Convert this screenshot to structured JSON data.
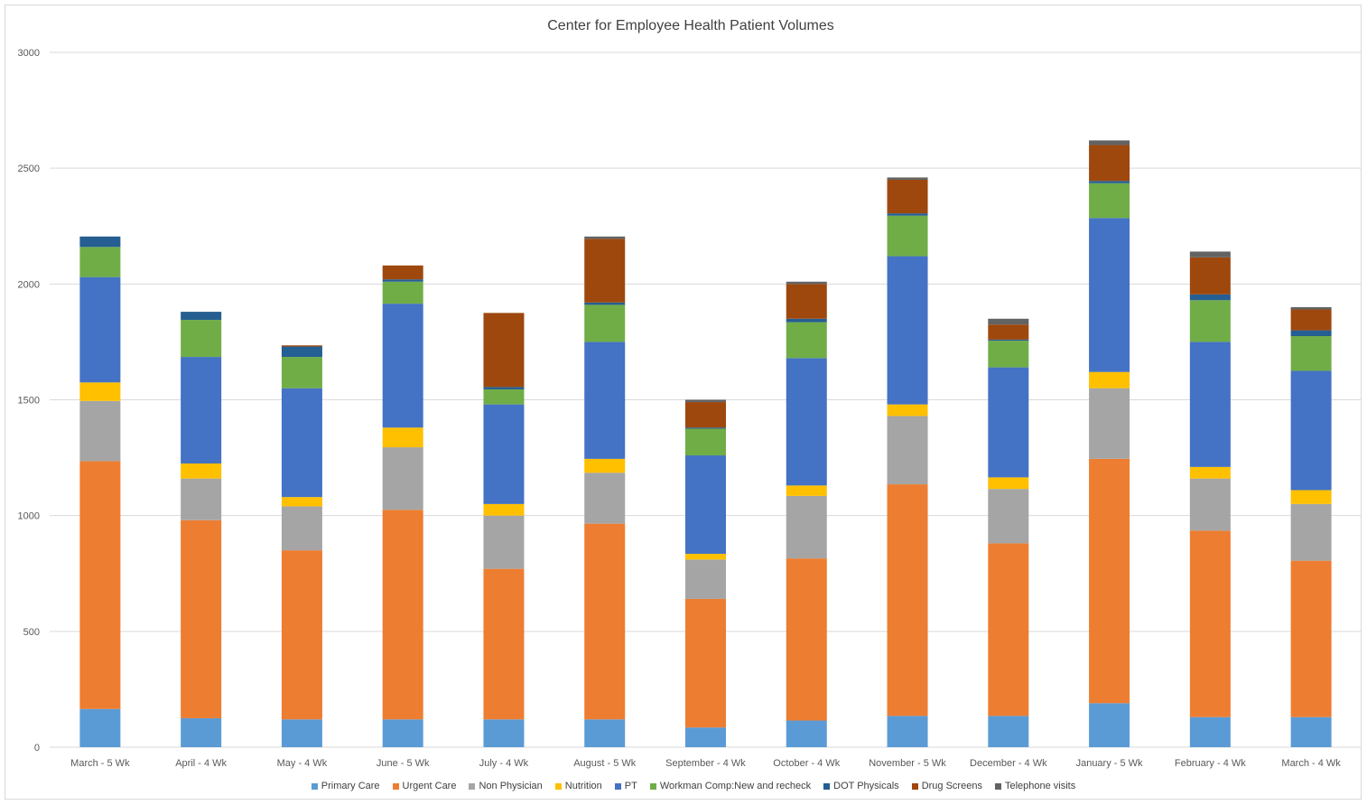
{
  "chart_data": {
    "type": "bar",
    "stacked": true,
    "title": "Center for Employee Health Patient Volumes",
    "xlabel": "",
    "ylabel": "",
    "ylim": [
      0,
      3000
    ],
    "yticks": [
      0,
      500,
      1000,
      1500,
      2000,
      2500,
      3000
    ],
    "grid": true,
    "legend_position": "bottom",
    "categories": [
      "March - 5 Wk",
      "April - 4 Wk",
      "May - 4 Wk",
      "June - 5 Wk",
      "July - 4 Wk",
      "August - 5 Wk",
      "September - 4 Wk",
      "October - 4 Wk",
      "November - 5 Wk",
      "December - 4 Wk",
      "January - 5 Wk",
      "February - 4 Wk",
      "March - 4 Wk"
    ],
    "series": [
      {
        "name": "Primary Care",
        "color": "#5b9bd5",
        "values": [
          165,
          125,
          120,
          120,
          120,
          120,
          85,
          115,
          135,
          135,
          190,
          130,
          130
        ]
      },
      {
        "name": "Urgent Care",
        "color": "#ed7d31",
        "values": [
          1070,
          855,
          730,
          905,
          650,
          845,
          555,
          700,
          1000,
          745,
          1055,
          805,
          675
        ]
      },
      {
        "name": "Non Physician",
        "color": "#a5a5a5",
        "values": [
          260,
          180,
          190,
          270,
          230,
          220,
          170,
          270,
          295,
          235,
          305,
          225,
          245
        ]
      },
      {
        "name": "Nutrition",
        "color": "#ffc000",
        "values": [
          80,
          65,
          40,
          85,
          50,
          60,
          25,
          45,
          50,
          50,
          70,
          50,
          60
        ]
      },
      {
        "name": "PT",
        "color": "#4472c4",
        "values": [
          455,
          460,
          470,
          535,
          430,
          505,
          425,
          550,
          640,
          475,
          665,
          540,
          515
        ]
      },
      {
        "name": "Workman Comp:New and recheck",
        "color": "#70ad47",
        "values": [
          130,
          160,
          135,
          95,
          65,
          160,
          115,
          155,
          175,
          115,
          150,
          180,
          150
        ]
      },
      {
        "name": "DOT Physicals",
        "color": "#255e91",
        "values": [
          45,
          35,
          45,
          10,
          10,
          10,
          5,
          15,
          10,
          5,
          10,
          25,
          25
        ]
      },
      {
        "name": "Drug Screens",
        "color": "#9e480e",
        "values": [
          0,
          0,
          5,
          60,
          320,
          275,
          110,
          150,
          145,
          65,
          155,
          160,
          90
        ]
      },
      {
        "name": "Telephone visits",
        "color": "#636363",
        "values": [
          0,
          0,
          0,
          0,
          0,
          10,
          10,
          10,
          10,
          25,
          20,
          25,
          10
        ]
      }
    ]
  }
}
